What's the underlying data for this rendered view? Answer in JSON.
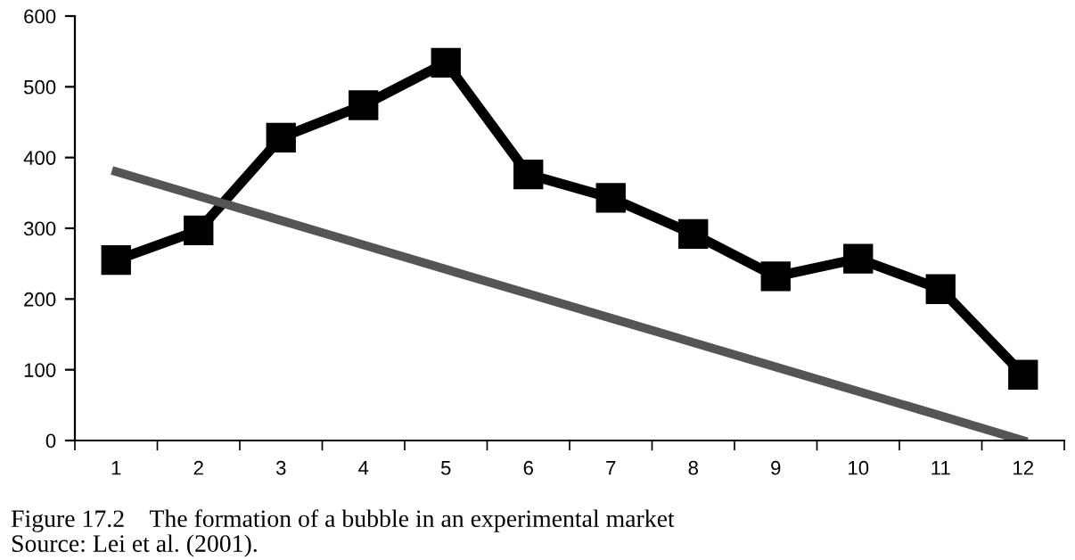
{
  "chart_data": {
    "type": "line",
    "title": "Figure 17.2    The formation of a bubble in an experimental market",
    "annotations": [
      "Source: Lei et al. (2001)."
    ],
    "categories": [
      "1",
      "2",
      "3",
      "4",
      "5",
      "6",
      "7",
      "8",
      "9",
      "10",
      "11",
      "12"
    ],
    "series": [
      {
        "color": "#000000",
        "marker": "square",
        "values": [
          255,
          297,
          428,
          474,
          534,
          376,
          343,
          292,
          232,
          257,
          214,
          93
        ]
      },
      {
        "color": "#555555",
        "marker": "none",
        "values": [
          380,
          345.5,
          311,
          276.5,
          242,
          207.5,
          173,
          138.5,
          104,
          69.5,
          35,
          0
        ]
      }
    ],
    "ylim": [
      0,
      600
    ],
    "yticks": [
      0,
      100,
      200,
      300,
      400,
      500,
      600
    ],
    "grid": false,
    "legend": false
  }
}
